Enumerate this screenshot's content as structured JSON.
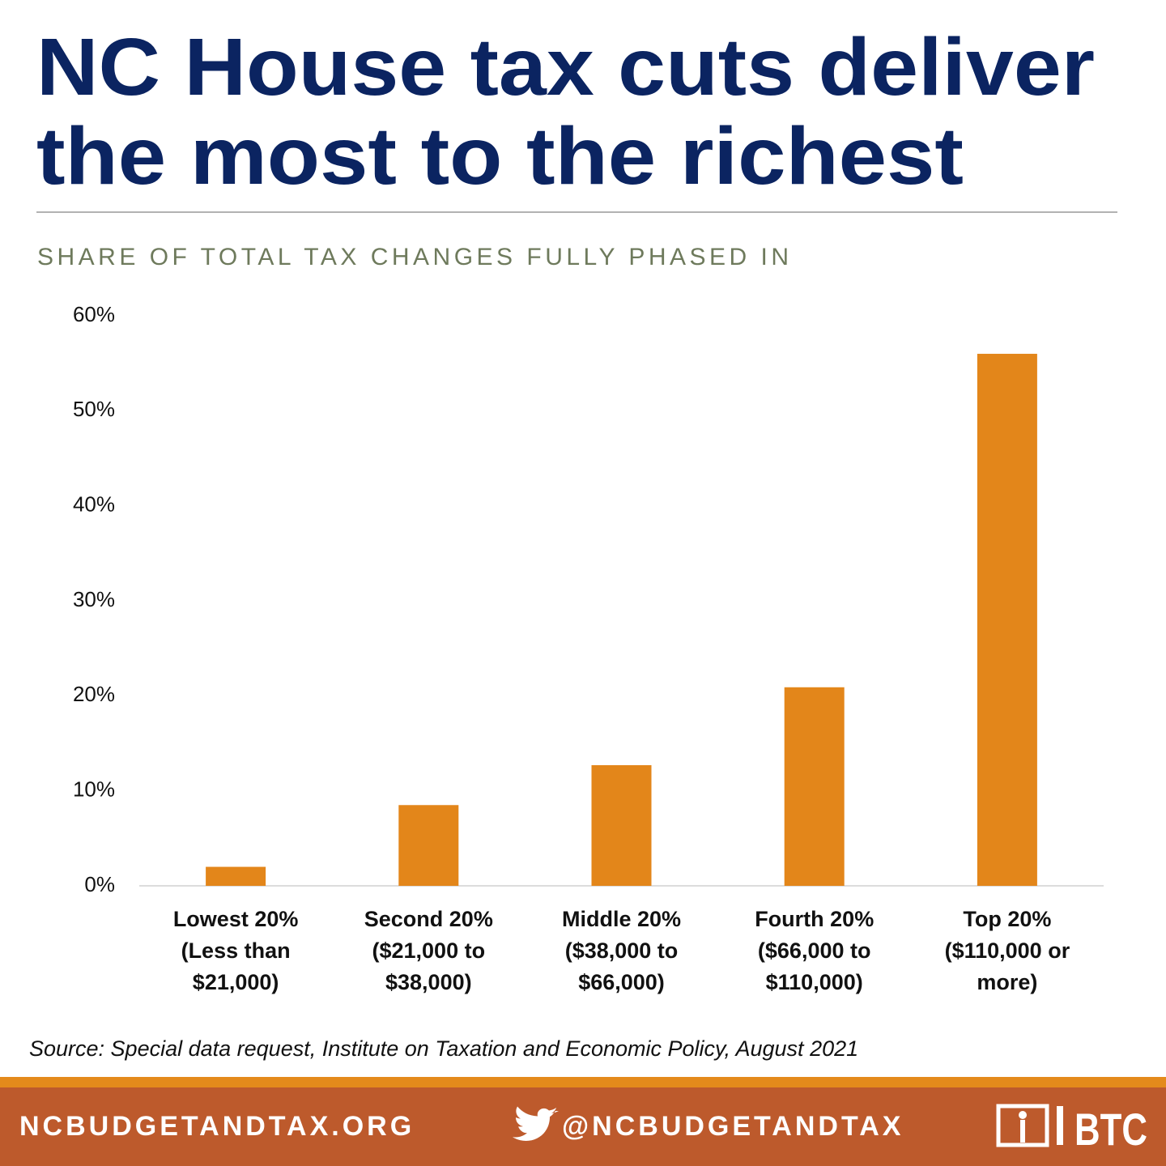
{
  "chart_data": {
    "type": "bar",
    "title": [
      "NC House tax cuts deliver",
      "the most to the richest"
    ],
    "subtitle": "SHARE OF TOTAL TAX CHANGES FULLY PHASED IN",
    "categories": [
      [
        "Lowest 20%",
        "(Less than",
        "$21,000)"
      ],
      [
        "Second 20%",
        "($21,000 to",
        "$38,000)"
      ],
      [
        "Middle 20%",
        "($38,000 to",
        "$66,000)"
      ],
      [
        "Fourth 20%",
        "($66,000 to",
        "$110,000)"
      ],
      [
        "Top 20%",
        "($110,000 or",
        "more)"
      ]
    ],
    "values": [
      2,
      8.5,
      12.7,
      20.9,
      56
    ],
    "color": "#e3861a",
    "ylim": [
      0,
      60
    ],
    "yticks": [
      {
        "value": 0,
        "label": "0%"
      },
      {
        "value": 10,
        "label": "10%"
      },
      {
        "value": 20,
        "label": "20%"
      },
      {
        "value": 30,
        "label": "30%"
      },
      {
        "value": 40,
        "label": "40%"
      },
      {
        "value": 50,
        "label": "50%"
      },
      {
        "value": 60,
        "label": "60%"
      }
    ],
    "grid": false,
    "source": "Source: Special data request, Institute on Taxation and Economic Policy, August 2021"
  },
  "footer": {
    "website": "NCBUDGETANDTAX.ORG",
    "handle": "@NCBUDGETANDTAX",
    "logo": "BTC"
  }
}
